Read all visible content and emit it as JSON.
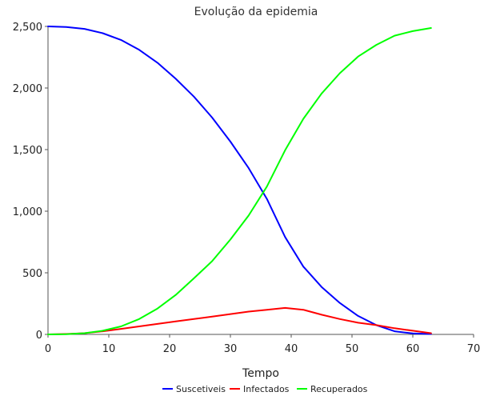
{
  "chart_data": {
    "type": "line",
    "title": "Evolução da epidemia",
    "xlabel": "Tempo",
    "ylabel": "",
    "xlim": [
      0,
      70
    ],
    "ylim": [
      0,
      2500
    ],
    "xticks": [
      0,
      10,
      20,
      30,
      40,
      50,
      60,
      70
    ],
    "yticks": [
      0,
      500,
      1000,
      1500,
      2000,
      2500
    ],
    "ytick_labels": [
      "0",
      "500",
      "1,000",
      "1,500",
      "2,000",
      "2,500"
    ],
    "grid": false,
    "legend_position": "bottom",
    "x": [
      0,
      3,
      6,
      9,
      12,
      15,
      18,
      21,
      24,
      27,
      30,
      33,
      36,
      39,
      42,
      45,
      48,
      51,
      54,
      57,
      60,
      63
    ],
    "series": [
      {
        "name": "Suscetiveis",
        "color": "#0000ff",
        "values": [
          2500,
          2495,
          2480,
          2445,
          2390,
          2310,
          2205,
          2075,
          1930,
          1760,
          1565,
          1350,
          1100,
          790,
          550,
          385,
          255,
          150,
          75,
          25,
          8,
          3
        ]
      },
      {
        "name": "Infectados",
        "color": "#ff0000",
        "values": [
          0,
          3,
          10,
          25,
          45,
          65,
          85,
          105,
          125,
          145,
          165,
          185,
          200,
          215,
          200,
          160,
          125,
          95,
          75,
          50,
          30,
          10
        ]
      },
      {
        "name": "Recuperados",
        "color": "#00ff00",
        "values": [
          0,
          2,
          10,
          30,
          65,
          125,
          210,
          320,
          455,
          595,
          770,
          965,
          1200,
          1495,
          1750,
          1955,
          2120,
          2255,
          2350,
          2425,
          2462,
          2487
        ]
      }
    ]
  }
}
